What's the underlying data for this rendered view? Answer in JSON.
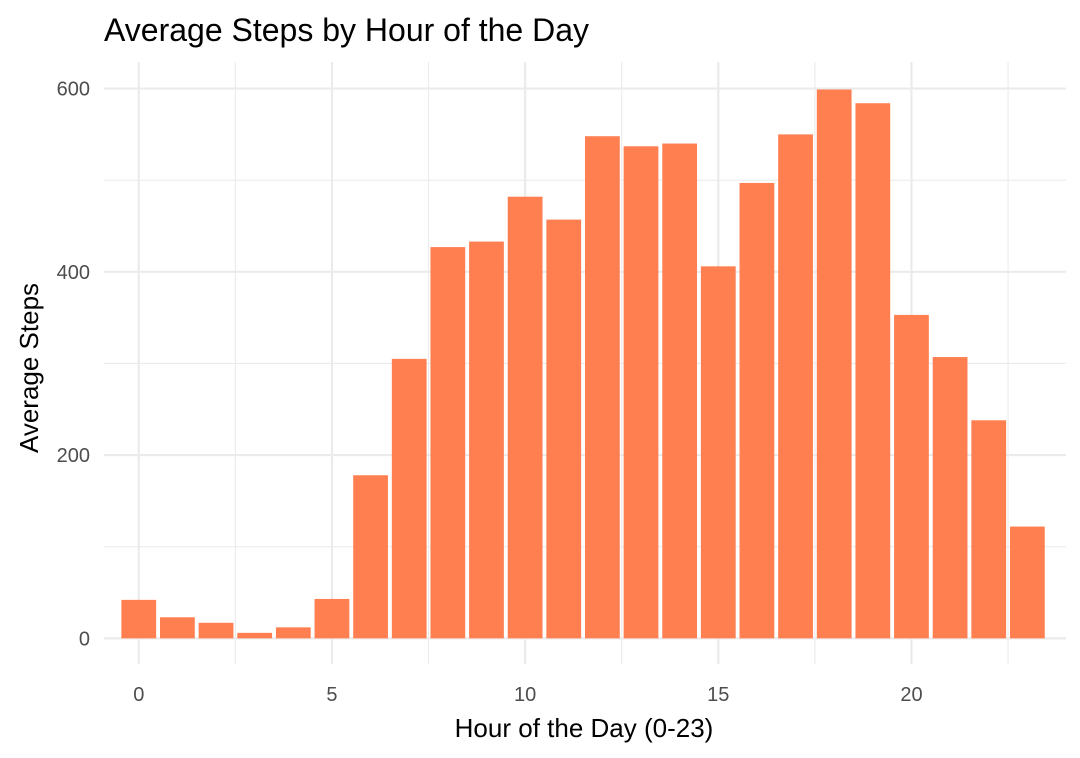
{
  "chart_data": {
    "type": "bar",
    "title": "Average Steps by Hour of the Day",
    "xlabel": "Hour of the Day (0-23)",
    "ylabel": "Average Steps",
    "x": [
      0,
      1,
      2,
      3,
      4,
      5,
      6,
      7,
      8,
      9,
      10,
      11,
      12,
      13,
      14,
      15,
      16,
      17,
      18,
      19,
      20,
      21,
      22,
      23
    ],
    "values": [
      42,
      23,
      17,
      6,
      12,
      43,
      178,
      305,
      427,
      433,
      482,
      457,
      548,
      537,
      540,
      406,
      497,
      550,
      599,
      584,
      353,
      307,
      238,
      122
    ],
    "xlim": [
      -0.9,
      24.0
    ],
    "ylim": [
      -28,
      629
    ],
    "x_ticks": [
      0,
      5,
      10,
      15,
      20
    ],
    "x_tick_labels": [
      "0",
      "5",
      "10",
      "15",
      "20"
    ],
    "x_minor_ticks": [
      2.5,
      7.5,
      12.5,
      17.5,
      22.5
    ],
    "y_ticks": [
      0,
      200,
      400,
      600
    ],
    "y_tick_labels": [
      "0",
      "200",
      "400",
      "600"
    ],
    "y_minor_ticks": [
      100,
      300,
      500
    ],
    "bar_color": "#FF7F50",
    "grid": true,
    "legend": "none"
  }
}
